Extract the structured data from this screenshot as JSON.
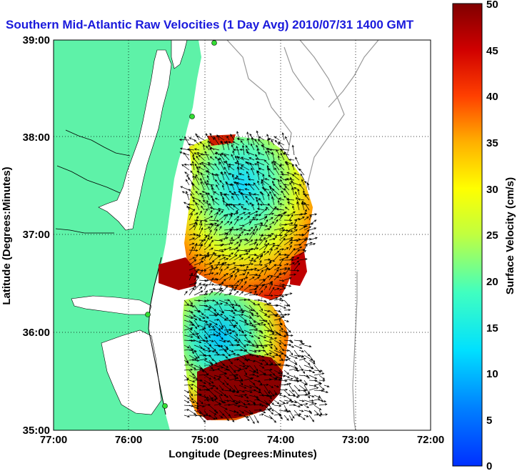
{
  "title": "Southern Mid-Atlantic Raw Velocities (1 Day Avg) 2010/07/31 1400 GMT",
  "chart_data": {
    "type": "heatmap",
    "xlabel": "Longitude (Degrees:Minutes)",
    "ylabel": "Latitude (Degrees:Minutes)",
    "x_ticks": [
      "77:00",
      "76:00",
      "75:00",
      "74:00",
      "73:00",
      "72:00"
    ],
    "y_ticks": [
      "39:00",
      "38:00",
      "37:00",
      "36:00",
      "35:00"
    ],
    "xlim": [
      -77,
      -72
    ],
    "ylim": [
      35,
      39
    ],
    "grid": true,
    "colorbar": {
      "label": "Surface Velocity (cm/s)",
      "range": [
        0,
        50
      ],
      "ticks": [
        "50",
        "45",
        "40",
        "35",
        "30",
        "25",
        "20",
        "15",
        "10",
        "5",
        "0"
      ],
      "colormap": "jet"
    },
    "land_color": "#5ef2a8",
    "station_color": "#33dd33"
  }
}
